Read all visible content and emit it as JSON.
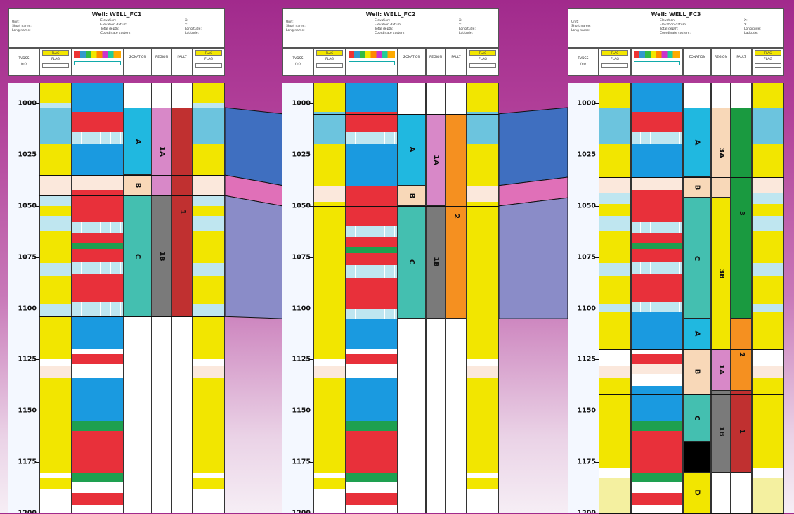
{
  "depth_axis": {
    "min": 990,
    "max": 1200,
    "ticks": [
      1000,
      1025,
      1050,
      1075,
      1100,
      1125,
      1150,
      1175,
      1200
    ]
  },
  "header_fields": {
    "left": [
      "Unit:",
      "Short name:",
      "Long name:"
    ],
    "middle": [
      "Elevation:",
      "Elevation datum:",
      "Total depth:",
      "Coordinate system:"
    ],
    "right": [
      "X:",
      "Y:",
      "Longitude:",
      "Latitude:"
    ]
  },
  "track_headers": {
    "depth": [
      "TVDSS",
      "(m)"
    ],
    "flag": "FLAG",
    "zonation": "ZONATION",
    "region": "REGION",
    "fault": "FAULT"
  },
  "colors": {
    "yellow": "#f2e600",
    "lightblue": "#6cc4de",
    "blue": "#1a9ae0",
    "red": "#e8303a",
    "green": "#1ea050",
    "teal": "#44bfb0",
    "peach": "#f8d8b8",
    "pink": "#d888c8",
    "grey": "#7a7a7a",
    "darkred": "#c03030",
    "orange": "#f59020",
    "cream": "#fbe8dc",
    "darkgreen": "#1a9a40",
    "black": "#000000",
    "cyan": "#20b8e8",
    "zoneA": "#20b8e0",
    "paleblue": "#bfe6f0",
    "lightyellow": "#f4f0a0"
  },
  "wells": [
    {
      "title": "Well: WELL_FC1",
      "flag_log": [
        {
          "top": 990,
          "bottom": 1000,
          "color": "yellow"
        },
        {
          "top": 1000,
          "bottom": 1002,
          "color": "paleblue"
        },
        {
          "top": 1002,
          "bottom": 1020,
          "color": "lightblue"
        },
        {
          "top": 1020,
          "bottom": 1035,
          "color": "yellow"
        },
        {
          "top": 1035,
          "bottom": 1045,
          "color": "cream"
        },
        {
          "top": 1045,
          "bottom": 1050,
          "color": "paleblue"
        },
        {
          "top": 1050,
          "bottom": 1055,
          "color": "yellow"
        },
        {
          "top": 1055,
          "bottom": 1062,
          "color": "paleblue"
        },
        {
          "top": 1062,
          "bottom": 1078,
          "color": "yellow"
        },
        {
          "top": 1078,
          "bottom": 1084,
          "color": "paleblue"
        },
        {
          "top": 1084,
          "bottom": 1098,
          "color": "yellow"
        },
        {
          "top": 1098,
          "bottom": 1104,
          "color": "paleblue"
        },
        {
          "top": 1104,
          "bottom": 1125,
          "color": "yellow"
        },
        {
          "top": 1128,
          "bottom": 1134,
          "color": "cream"
        },
        {
          "top": 1134,
          "bottom": 1180,
          "color": "yellow"
        },
        {
          "top": 1183,
          "bottom": 1188,
          "color": "yellow"
        }
      ],
      "facies_log": [
        {
          "top": 990,
          "bottom": 1004,
          "color": "blue"
        },
        {
          "top": 1004,
          "bottom": 1014,
          "color": "red"
        },
        {
          "top": 1014,
          "bottom": 1020,
          "color": "paleblue"
        },
        {
          "top": 1020,
          "bottom": 1035,
          "color": "blue"
        },
        {
          "top": 1035,
          "bottom": 1042,
          "color": "cream"
        },
        {
          "top": 1042,
          "bottom": 1058,
          "color": "red"
        },
        {
          "top": 1058,
          "bottom": 1063,
          "color": "paleblue"
        },
        {
          "top": 1063,
          "bottom": 1068,
          "color": "red"
        },
        {
          "top": 1068,
          "bottom": 1071,
          "color": "green"
        },
        {
          "top": 1071,
          "bottom": 1077,
          "color": "red"
        },
        {
          "top": 1077,
          "bottom": 1083,
          "color": "paleblue"
        },
        {
          "top": 1083,
          "bottom": 1097,
          "color": "red"
        },
        {
          "top": 1097,
          "bottom": 1104,
          "color": "paleblue"
        },
        {
          "top": 1104,
          "bottom": 1120,
          "color": "blue"
        },
        {
          "top": 1122,
          "bottom": 1127,
          "color": "red"
        },
        {
          "top": 1134,
          "bottom": 1155,
          "color": "blue"
        },
        {
          "top": 1155,
          "bottom": 1160,
          "color": "green"
        },
        {
          "top": 1160,
          "bottom": 1180,
          "color": "red"
        },
        {
          "top": 1180,
          "bottom": 1185,
          "color": "green"
        },
        {
          "top": 1190,
          "bottom": 1196,
          "color": "red"
        }
      ],
      "zonation": [
        {
          "top": 1002,
          "bottom": 1035,
          "color": "zoneA",
          "label": "A"
        },
        {
          "top": 1035,
          "bottom": 1045,
          "color": "peach",
          "label": "B"
        },
        {
          "top": 1045,
          "bottom": 1104,
          "color": "teal",
          "label": "C"
        }
      ],
      "region": [
        {
          "top": 1002,
          "bottom": 1045,
          "color": "pink",
          "label": "1A"
        },
        {
          "top": 1045,
          "bottom": 1104,
          "color": "grey",
          "label": "1B"
        }
      ],
      "fault": [
        {
          "top": 1002,
          "bottom": 1104,
          "color": "darkred",
          "label": "1"
        }
      ],
      "flag_log_right": "same"
    },
    {
      "title": "Well: WELL_FC2",
      "flag_log": [
        {
          "top": 990,
          "bottom": 1004,
          "color": "yellow"
        },
        {
          "top": 1004,
          "bottom": 1020,
          "color": "lightblue"
        },
        {
          "top": 1020,
          "bottom": 1040,
          "color": "yellow"
        },
        {
          "top": 1040,
          "bottom": 1048,
          "color": "cream"
        },
        {
          "top": 1048,
          "bottom": 1105,
          "color": "yellow"
        },
        {
          "top": 1105,
          "bottom": 1125,
          "color": "yellow"
        },
        {
          "top": 1128,
          "bottom": 1134,
          "color": "cream"
        },
        {
          "top": 1134,
          "bottom": 1180,
          "color": "yellow"
        },
        {
          "top": 1183,
          "bottom": 1188,
          "color": "yellow"
        }
      ],
      "facies_log": [
        {
          "top": 990,
          "bottom": 1004,
          "color": "blue"
        },
        {
          "top": 1004,
          "bottom": 1014,
          "color": "red"
        },
        {
          "top": 1014,
          "bottom": 1020,
          "color": "paleblue"
        },
        {
          "top": 1020,
          "bottom": 1040,
          "color": "blue"
        },
        {
          "top": 1040,
          "bottom": 1060,
          "color": "red"
        },
        {
          "top": 1060,
          "bottom": 1065,
          "color": "paleblue"
        },
        {
          "top": 1065,
          "bottom": 1070,
          "color": "red"
        },
        {
          "top": 1070,
          "bottom": 1073,
          "color": "green"
        },
        {
          "top": 1073,
          "bottom": 1079,
          "color": "red"
        },
        {
          "top": 1079,
          "bottom": 1085,
          "color": "paleblue"
        },
        {
          "top": 1085,
          "bottom": 1100,
          "color": "red"
        },
        {
          "top": 1100,
          "bottom": 1105,
          "color": "paleblue"
        },
        {
          "top": 1105,
          "bottom": 1120,
          "color": "blue"
        },
        {
          "top": 1122,
          "bottom": 1127,
          "color": "red"
        },
        {
          "top": 1134,
          "bottom": 1155,
          "color": "blue"
        },
        {
          "top": 1155,
          "bottom": 1160,
          "color": "green"
        },
        {
          "top": 1160,
          "bottom": 1180,
          "color": "red"
        },
        {
          "top": 1180,
          "bottom": 1185,
          "color": "green"
        },
        {
          "top": 1190,
          "bottom": 1196,
          "color": "red"
        }
      ],
      "zonation": [
        {
          "top": 1005,
          "bottom": 1040,
          "color": "zoneA",
          "label": "A"
        },
        {
          "top": 1040,
          "bottom": 1050,
          "color": "peach",
          "label": "B"
        },
        {
          "top": 1050,
          "bottom": 1105,
          "color": "teal",
          "label": "C"
        }
      ],
      "region": [
        {
          "top": 1005,
          "bottom": 1050,
          "color": "pink",
          "label": "1A"
        },
        {
          "top": 1050,
          "bottom": 1105,
          "color": "grey",
          "label": "1B"
        }
      ],
      "fault": [
        {
          "top": 1005,
          "bottom": 1105,
          "color": "orange",
          "label": "2"
        }
      ]
    },
    {
      "title": "Well: WELL_FC3",
      "flag_log": [
        {
          "top": 990,
          "bottom": 1002,
          "color": "yellow"
        },
        {
          "top": 1002,
          "bottom": 1020,
          "color": "lightblue"
        },
        {
          "top": 1020,
          "bottom": 1036,
          "color": "yellow"
        },
        {
          "top": 1036,
          "bottom": 1044,
          "color": "cream"
        },
        {
          "top": 1044,
          "bottom": 1049,
          "color": "paleblue"
        },
        {
          "top": 1049,
          "bottom": 1055,
          "color": "yellow"
        },
        {
          "top": 1055,
          "bottom": 1062,
          "color": "paleblue"
        },
        {
          "top": 1062,
          "bottom": 1078,
          "color": "yellow"
        },
        {
          "top": 1078,
          "bottom": 1084,
          "color": "paleblue"
        },
        {
          "top": 1084,
          "bottom": 1098,
          "color": "yellow"
        },
        {
          "top": 1098,
          "bottom": 1102,
          "color": "paleblue"
        },
        {
          "top": 1102,
          "bottom": 1120,
          "color": "yellow"
        },
        {
          "top": 1128,
          "bottom": 1134,
          "color": "cream"
        },
        {
          "top": 1134,
          "bottom": 1178,
          "color": "yellow"
        },
        {
          "top": 1183,
          "bottom": 1200,
          "color": "lightyellow"
        }
      ],
      "facies_log": [
        {
          "top": 990,
          "bottom": 1004,
          "color": "blue"
        },
        {
          "top": 1004,
          "bottom": 1014,
          "color": "red"
        },
        {
          "top": 1014,
          "bottom": 1020,
          "color": "paleblue"
        },
        {
          "top": 1020,
          "bottom": 1036,
          "color": "blue"
        },
        {
          "top": 1036,
          "bottom": 1042,
          "color": "cream"
        },
        {
          "top": 1042,
          "bottom": 1058,
          "color": "red"
        },
        {
          "top": 1058,
          "bottom": 1063,
          "color": "paleblue"
        },
        {
          "top": 1063,
          "bottom": 1068,
          "color": "red"
        },
        {
          "top": 1068,
          "bottom": 1071,
          "color": "green"
        },
        {
          "top": 1071,
          "bottom": 1077,
          "color": "red"
        },
        {
          "top": 1077,
          "bottom": 1083,
          "color": "paleblue"
        },
        {
          "top": 1083,
          "bottom": 1097,
          "color": "red"
        },
        {
          "top": 1097,
          "bottom": 1102,
          "color": "paleblue"
        },
        {
          "top": 1102,
          "bottom": 1120,
          "color": "blue"
        },
        {
          "top": 1122,
          "bottom": 1127,
          "color": "red"
        },
        {
          "top": 1127,
          "bottom": 1132,
          "color": "cream"
        },
        {
          "top": 1138,
          "bottom": 1155,
          "color": "blue"
        },
        {
          "top": 1155,
          "bottom": 1160,
          "color": "green"
        },
        {
          "top": 1160,
          "bottom": 1180,
          "color": "red"
        },
        {
          "top": 1180,
          "bottom": 1185,
          "color": "green"
        },
        {
          "top": 1190,
          "bottom": 1196,
          "color": "red"
        }
      ],
      "zonation": [
        {
          "top": 1002,
          "bottom": 1036,
          "color": "zoneA",
          "label": "A"
        },
        {
          "top": 1036,
          "bottom": 1046,
          "color": "peach",
          "label": "B"
        },
        {
          "top": 1046,
          "bottom": 1105,
          "color": "teal",
          "label": "C"
        },
        {
          "top": 1105,
          "bottom": 1120,
          "color": "zoneA",
          "label": "A"
        },
        {
          "top": 1120,
          "bottom": 1142,
          "color": "peach",
          "label": "B"
        },
        {
          "top": 1142,
          "bottom": 1165,
          "color": "teal",
          "label": "C"
        },
        {
          "top": 1165,
          "bottom": 1180,
          "color": "black",
          "label": ""
        },
        {
          "top": 1180,
          "bottom": 1200,
          "color": "yellow",
          "label": "D"
        }
      ],
      "region": [
        {
          "top": 1002,
          "bottom": 1046,
          "color": "peach",
          "label": "3A"
        },
        {
          "top": 1046,
          "bottom": 1120,
          "color": "yellow",
          "label": "3B"
        },
        {
          "top": 1120,
          "bottom": 1140,
          "color": "pink",
          "label": "1A"
        },
        {
          "top": 1140,
          "bottom": 1180,
          "color": "grey",
          "label": "1B"
        }
      ],
      "fault": [
        {
          "top": 1002,
          "bottom": 1105,
          "color": "darkgreen",
          "label": "3"
        },
        {
          "top": 1105,
          "bottom": 1140,
          "color": "orange",
          "label": "2"
        },
        {
          "top": 1140,
          "bottom": 1180,
          "color": "darkred",
          "label": "1"
        }
      ]
    }
  ],
  "correlations": [
    {
      "color": "#3f6fc0",
      "w1_top": 1002,
      "w1_bottom": 1035,
      "w2_top": 1005,
      "w2_bottom": 1040,
      "w3_top": 1002,
      "w3_bottom": 1036
    },
    {
      "color": "#e070b8",
      "w1_top": 1035,
      "w1_bottom": 1045,
      "w2_top": 1040,
      "w2_bottom": 1050,
      "w3_top": 1036,
      "w3_bottom": 1046
    },
    {
      "color": "#8a8cc8",
      "w1_top": 1045,
      "w1_bottom": 1104,
      "w2_top": 1050,
      "w2_bottom": 1105,
      "w3_top": 1046,
      "w3_bottom": 1105
    }
  ]
}
